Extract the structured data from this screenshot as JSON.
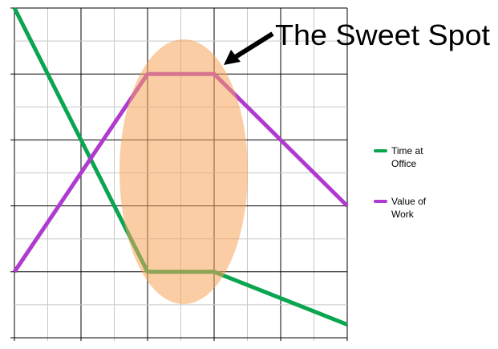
{
  "chart_data": {
    "type": "line",
    "annotation": "The Sweet Spot",
    "x": [
      0,
      4,
      6,
      10
    ],
    "series": [
      {
        "name": "Time at Office",
        "color": "#0aa550",
        "values": [
          10,
          2,
          2,
          0.4
        ]
      },
      {
        "name": "Value of Work",
        "color": "#b03ad0",
        "values": [
          2,
          8,
          8,
          4
        ]
      }
    ],
    "xlim": [
      0,
      10
    ],
    "ylim": [
      0,
      10
    ],
    "xticks": [
      0,
      1,
      2,
      3,
      4,
      5,
      6,
      7,
      8,
      9,
      10
    ],
    "yticks": [
      0,
      1,
      2,
      3,
      4,
      5,
      6,
      7,
      8,
      9,
      10
    ],
    "grid": true
  }
}
